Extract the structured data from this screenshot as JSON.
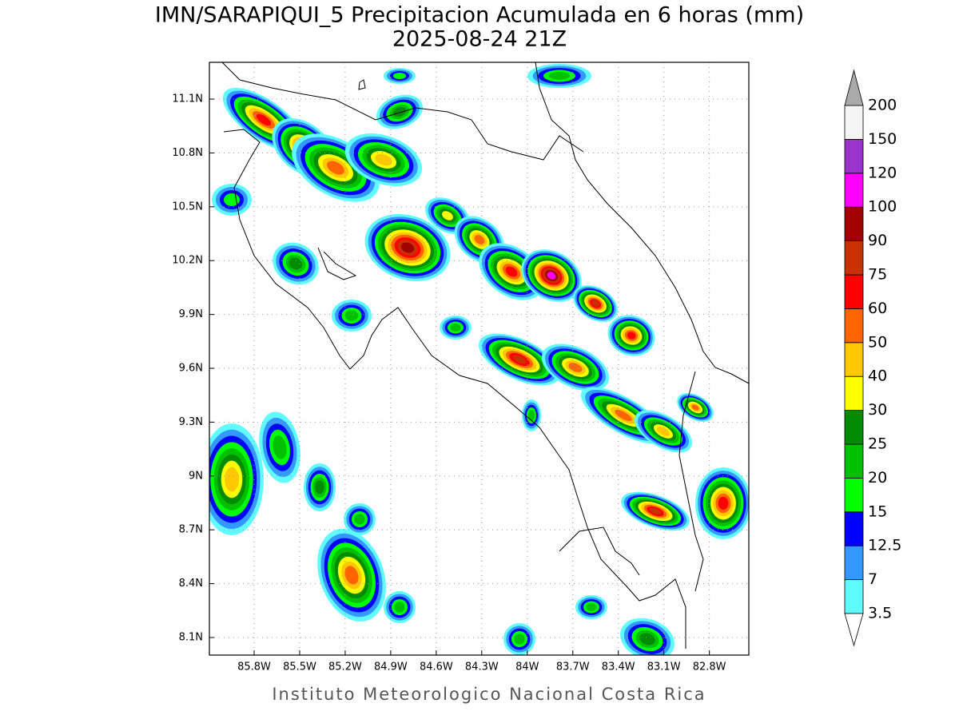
{
  "map": {
    "title": "IMN/SARAPIQUI_5 Precipitacion Acumulada en 6 horas (mm)",
    "subtitle": "2025-08-24 21Z",
    "footer": "Instituto Meteorologico Nacional Costa Rica",
    "xlim": [
      -86.095,
      -82.54
    ],
    "ylim": [
      8.002,
      11.305
    ],
    "xticks": [
      {
        "value": -85.8,
        "label": "85.8W"
      },
      {
        "value": -85.5,
        "label": "85.5W"
      },
      {
        "value": -85.2,
        "label": "85.2W"
      },
      {
        "value": -84.9,
        "label": "84.9W"
      },
      {
        "value": -84.6,
        "label": "84.6W"
      },
      {
        "value": -84.3,
        "label": "84.3W"
      },
      {
        "value": -84,
        "label": "84W"
      },
      {
        "value": -83.7,
        "label": "83.7W"
      },
      {
        "value": -83.4,
        "label": "83.4W"
      },
      {
        "value": -83.1,
        "label": "83.1W"
      },
      {
        "value": -82.8,
        "label": "82.8W"
      }
    ],
    "yticks": [
      {
        "value": 11.1,
        "label": "11.1N"
      },
      {
        "value": 10.8,
        "label": "10.8N"
      },
      {
        "value": 10.5,
        "label": "10.5N"
      },
      {
        "value": 10.2,
        "label": "10.2N"
      },
      {
        "value": 9.9,
        "label": "9.9N"
      },
      {
        "value": 9.6,
        "label": "9.6N"
      },
      {
        "value": 9.3,
        "label": "9.3N"
      },
      {
        "value": 9,
        "label": "9N"
      },
      {
        "value": 8.7,
        "label": "8.7N"
      },
      {
        "value": 8.4,
        "label": "8.4N"
      },
      {
        "value": 8.1,
        "label": "8.1N"
      }
    ],
    "grid": true,
    "colorbar": {
      "levels": [
        3.5,
        7,
        12.5,
        15,
        20,
        25,
        30,
        40,
        50,
        60,
        75,
        90,
        100,
        120,
        150,
        200
      ],
      "colors": [
        "#5ffbff",
        "#3399ff",
        "#0000ff",
        "#00ff00",
        "#00c000",
        "#008c00",
        "#ffff00",
        "#ffc800",
        "#ff6400",
        "#ff0000",
        "#c83200",
        "#a00000",
        "#ff00ff",
        "#9933cc",
        "#f5f5f5"
      ],
      "under_color": "#ffffff",
      "over_color": "#aaaaaa"
    }
  }
}
